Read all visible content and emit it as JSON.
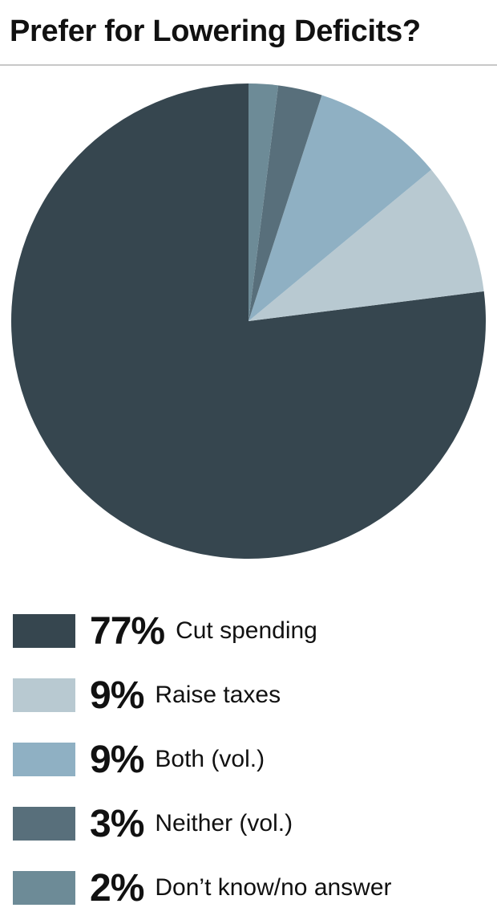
{
  "chart_data": {
    "type": "pie",
    "title": "Prefer for Lowering Deficits?",
    "slices": [
      {
        "label": "Cut spending",
        "value": 77,
        "value_label": "77%",
        "color": "#36464f"
      },
      {
        "label": "Raise taxes",
        "value": 9,
        "value_label": "9%",
        "color": "#b8c9d1"
      },
      {
        "label": "Both (vol.)",
        "value": 9,
        "value_label": "9%",
        "color": "#8fb0c3"
      },
      {
        "label": "Neither (vol.)",
        "value": 3,
        "value_label": "3%",
        "color": "#586f7b"
      },
      {
        "label": "Don’t know/no answer",
        "value": 2,
        "value_label": "2%",
        "color": "#6d8b97"
      }
    ],
    "legend_position": "bottom",
    "grid": false
  }
}
